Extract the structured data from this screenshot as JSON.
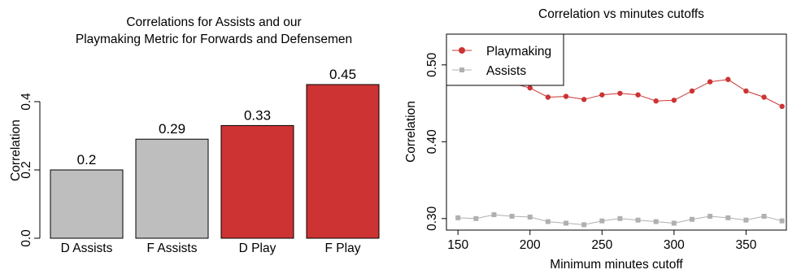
{
  "chart_data": [
    {
      "type": "bar",
      "title_lines": [
        "Correlations for Assists and our",
        "Playmaking Metric for Forwards and Defensemen"
      ],
      "xlabel": "",
      "ylabel": "Correlation",
      "ylim": [
        0,
        0.5
      ],
      "yticks": [
        0.0,
        0.2,
        0.4
      ],
      "ytick_labels": [
        "0.0",
        "0.2",
        "0.4"
      ],
      "categories": [
        "D Assists",
        "F Assists",
        "D Play",
        "F Play"
      ],
      "values": [
        0.2,
        0.29,
        0.33,
        0.45
      ],
      "value_labels": [
        "0.2",
        "0.29",
        "0.33",
        "0.45"
      ],
      "colors": [
        "#bebebe",
        "#bebebe",
        "#cd3333",
        "#cd3333"
      ],
      "grid": false
    },
    {
      "type": "line",
      "title": "Correlation vs minutes cutoffs",
      "xlabel": "Minimum minutes cutoff",
      "ylabel": "Correlation",
      "xlim": [
        142,
        378
      ],
      "ylim": [
        0.285,
        0.54
      ],
      "xticks": [
        150,
        200,
        250,
        300,
        350
      ],
      "xtick_labels": [
        "150",
        "200",
        "250",
        "300",
        "350"
      ],
      "yticks": [
        0.3,
        0.4,
        0.5
      ],
      "ytick_labels": [
        "0.30",
        "0.40",
        "0.50"
      ],
      "legend_position": "top-left",
      "grid": false,
      "x": [
        150,
        162.5,
        175,
        187.5,
        200,
        212.5,
        225,
        237.5,
        250,
        262.5,
        275,
        287.5,
        300,
        312.5,
        325,
        337.5,
        350,
        362.5,
        375
      ],
      "series": [
        {
          "name": "Playmaking",
          "color": "#cd3333",
          "marker": "circle",
          "values": [
            0.478,
            0.481,
            0.478,
            0.476,
            0.47,
            0.458,
            0.459,
            0.455,
            0.461,
            0.463,
            0.461,
            0.453,
            0.454,
            0.466,
            0.478,
            0.481,
            0.466,
            0.458,
            0.446
          ]
        },
        {
          "name": "Assists",
          "color": "#b0b0b0",
          "marker": "square",
          "values": [
            0.301,
            0.3,
            0.305,
            0.303,
            0.302,
            0.296,
            0.294,
            0.292,
            0.297,
            0.3,
            0.298,
            0.296,
            0.294,
            0.299,
            0.303,
            0.301,
            0.298,
            0.303,
            0.297
          ]
        }
      ]
    }
  ]
}
